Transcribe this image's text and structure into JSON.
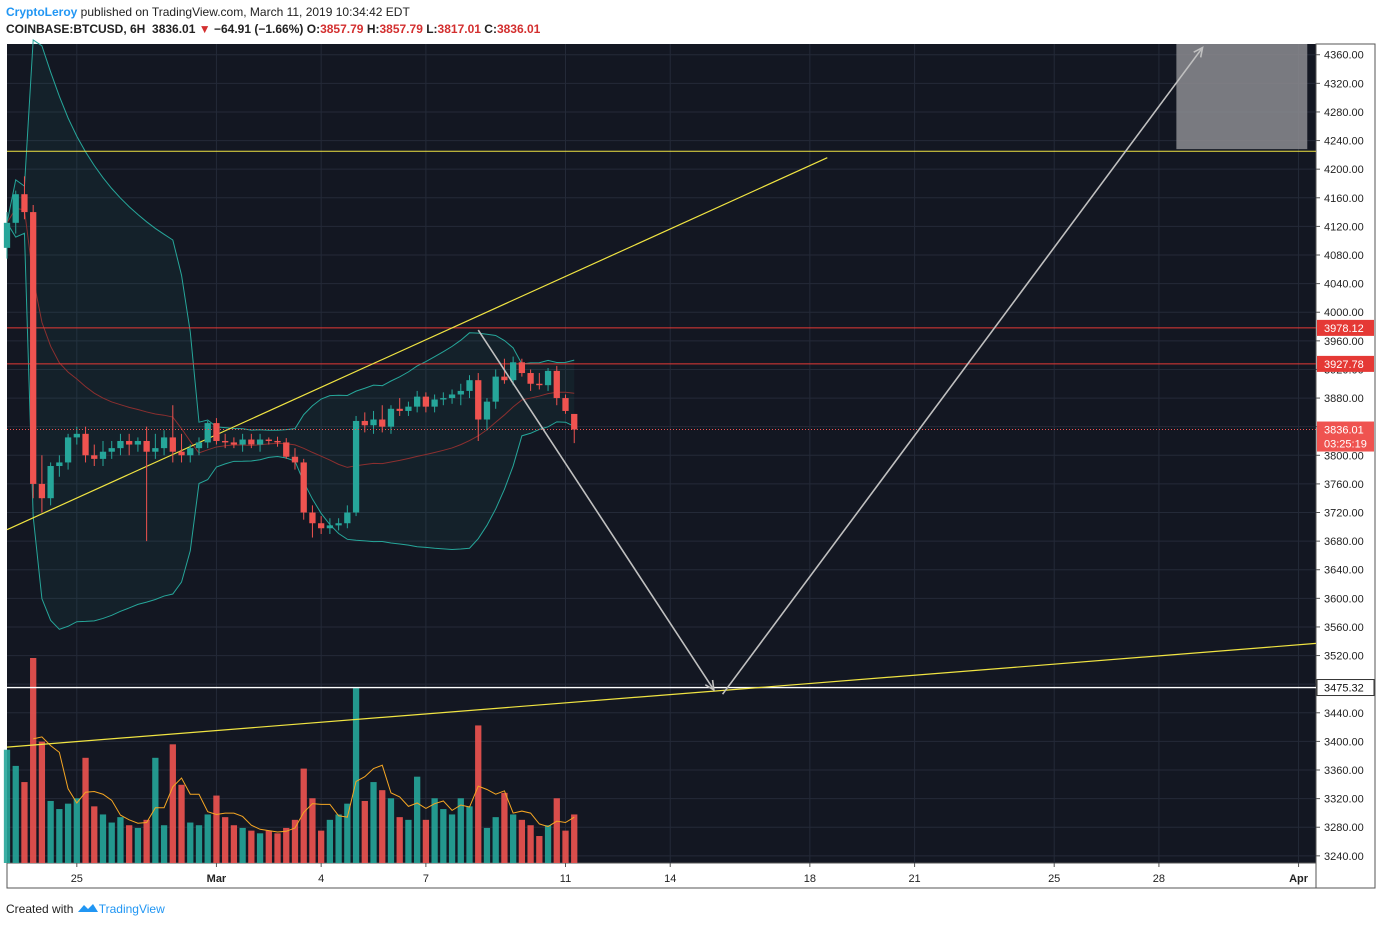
{
  "header": {
    "author": "CryptoLeroy",
    "published_text": " published on TradingView.com, March 11, 2019 10:34:42 EDT",
    "symbol": "COINBASE:BTCUSD, 6H",
    "last": "3836.01",
    "change": "−64.91 (−1.66%)",
    "open_label": "O:",
    "open": "3857.79",
    "high_label": "H:",
    "high": "3857.79",
    "low_label": "L:",
    "low": "3817.01",
    "close_label": "C:",
    "close": "3836.01"
  },
  "footer": {
    "created_with": "Created with",
    "brand": "TradingView"
  },
  "colors": {
    "background": "#131722",
    "up": "#26a69a",
    "down": "#ef5350",
    "trendline": "#f0e442",
    "support": "#ffffff",
    "resistance": "#e53935",
    "arrow": "#c0c0c0",
    "bollinger": "#26a69a",
    "volume_ma": "#f5a623"
  },
  "chart_data": {
    "type": "candlestick",
    "timeframe": "6H",
    "ylim": [
      3230,
      4375
    ],
    "y_ticks": [
      3240,
      3280,
      3320,
      3360,
      3400,
      3440,
      3480,
      3520,
      3560,
      3600,
      3640,
      3680,
      3720,
      3760,
      3800,
      3840,
      3880,
      3920,
      3960,
      4000,
      4040,
      4080,
      4120,
      4160,
      4200,
      4240,
      4280,
      4320,
      4360
    ],
    "y_tick_labels": [
      "3240.00",
      "3280.00",
      "3320.00",
      "3360.00",
      "3400.00",
      "3440.00",
      "3480.00",
      "3520.00",
      "3560.00",
      "3600.00",
      "3640.00",
      "3680.00",
      "3720.00",
      "3760.00",
      "3800.00",
      "3840.00",
      "3880.00",
      "3920.00",
      "3960.00",
      "4000.00",
      "4040.00",
      "4080.00",
      "4120.00",
      "4160.00",
      "4200.00",
      "4240.00",
      "4280.00",
      "4320.00",
      "4360.00"
    ],
    "x_axis": {
      "start": "2019-02-23T00:00",
      "end": "2019-04-01T12:00",
      "ticks": [
        {
          "date": "2019-02-25",
          "label": "25"
        },
        {
          "date": "2019-03-01",
          "label": "Mar"
        },
        {
          "date": "2019-03-04",
          "label": "4"
        },
        {
          "date": "2019-03-07",
          "label": "7"
        },
        {
          "date": "2019-03-11",
          "label": "11"
        },
        {
          "date": "2019-03-14",
          "label": "14"
        },
        {
          "date": "2019-03-18",
          "label": "18"
        },
        {
          "date": "2019-03-21",
          "label": "21"
        },
        {
          "date": "2019-03-25",
          "label": "25"
        },
        {
          "date": "2019-03-28",
          "label": "28"
        },
        {
          "date": "2019-04-01",
          "label": "Apr"
        }
      ]
    },
    "candles": [
      [
        "2019-02-23T00:00",
        4090,
        4140,
        4075,
        4125,
        4.2
      ],
      [
        "2019-02-23T06:00",
        4125,
        4170,
        4110,
        4165,
        3.6
      ],
      [
        "2019-02-23T12:00",
        4165,
        4190,
        4130,
        4140,
        3.0
      ],
      [
        "2019-02-23T18:00",
        4140,
        4150,
        3740,
        3760,
        7.6
      ],
      [
        "2019-02-24T00:00",
        3760,
        3800,
        3720,
        3740,
        4.5
      ],
      [
        "2019-02-24T06:00",
        3740,
        3790,
        3730,
        3785,
        2.3
      ],
      [
        "2019-02-24T12:00",
        3785,
        3800,
        3770,
        3790,
        2.0
      ],
      [
        "2019-02-24T18:00",
        3790,
        3830,
        3780,
        3825,
        2.2
      ],
      [
        "2019-02-25T00:00",
        3825,
        3840,
        3815,
        3830,
        2.4
      ],
      [
        "2019-02-25T06:00",
        3830,
        3840,
        3790,
        3800,
        3.9
      ],
      [
        "2019-02-25T12:00",
        3800,
        3815,
        3785,
        3795,
        2.1
      ],
      [
        "2019-02-25T18:00",
        3795,
        3820,
        3785,
        3805,
        1.8
      ],
      [
        "2019-02-26T00:00",
        3805,
        3820,
        3795,
        3810,
        1.5
      ],
      [
        "2019-02-26T06:00",
        3810,
        3830,
        3800,
        3820,
        1.7
      ],
      [
        "2019-02-26T12:00",
        3820,
        3830,
        3800,
        3815,
        1.4
      ],
      [
        "2019-02-26T18:00",
        3815,
        3825,
        3805,
        3820,
        1.3
      ],
      [
        "2019-02-27T00:00",
        3820,
        3840,
        3680,
        3805,
        1.6
      ],
      [
        "2019-02-27T06:00",
        3805,
        3830,
        3795,
        3810,
        3.9
      ],
      [
        "2019-02-27T12:00",
        3810,
        3835,
        3800,
        3825,
        1.4
      ],
      [
        "2019-02-27T18:00",
        3825,
        3870,
        3790,
        3805,
        4.4
      ],
      [
        "2019-02-28T00:00",
        3805,
        3830,
        3790,
        3800,
        2.9
      ],
      [
        "2019-02-28T06:00",
        3800,
        3815,
        3790,
        3810,
        1.5
      ],
      [
        "2019-02-28T12:00",
        3810,
        3825,
        3800,
        3818,
        1.4
      ],
      [
        "2019-02-28T18:00",
        3818,
        3848,
        3810,
        3845,
        1.8
      ],
      [
        "2019-03-01T00:00",
        3845,
        3852,
        3815,
        3820,
        2.5
      ],
      [
        "2019-03-01T06:00",
        3820,
        3830,
        3810,
        3818,
        1.7
      ],
      [
        "2019-03-01T12:00",
        3818,
        3825,
        3810,
        3815,
        1.4
      ],
      [
        "2019-03-01T18:00",
        3815,
        3830,
        3805,
        3822,
        1.3
      ],
      [
        "2019-03-02T00:00",
        3822,
        3830,
        3810,
        3815,
        1.2
      ],
      [
        "2019-03-02T06:00",
        3815,
        3830,
        3805,
        3822,
        1.1
      ],
      [
        "2019-03-02T12:00",
        3822,
        3825,
        3815,
        3820,
        1.2
      ],
      [
        "2019-03-02T18:00",
        3820,
        3826,
        3812,
        3818,
        1.1
      ],
      [
        "2019-03-03T00:00",
        3818,
        3824,
        3795,
        3798,
        1.3
      ],
      [
        "2019-03-03T06:00",
        3798,
        3810,
        3780,
        3790,
        1.6
      ],
      [
        "2019-03-03T12:00",
        3790,
        3795,
        3710,
        3720,
        3.5
      ],
      [
        "2019-03-03T18:00",
        3720,
        3730,
        3685,
        3705,
        2.4
      ],
      [
        "2019-03-04T00:00",
        3705,
        3715,
        3690,
        3698,
        1.2
      ],
      [
        "2019-03-04T06:00",
        3698,
        3712,
        3690,
        3702,
        1.6
      ],
      [
        "2019-03-04T12:00",
        3702,
        3712,
        3695,
        3705,
        1.8
      ],
      [
        "2019-03-04T18:00",
        3705,
        3730,
        3698,
        3720,
        2.2
      ],
      [
        "2019-03-05T00:00",
        3720,
        3855,
        3715,
        3848,
        6.5
      ],
      [
        "2019-03-05T06:00",
        3848,
        3860,
        3832,
        3842,
        2.3
      ],
      [
        "2019-03-05T12:00",
        3842,
        3862,
        3830,
        3850,
        3.0
      ],
      [
        "2019-03-05T18:00",
        3850,
        3870,
        3832,
        3840,
        2.7
      ],
      [
        "2019-03-06T00:00",
        3840,
        3870,
        3830,
        3865,
        2.4
      ],
      [
        "2019-03-06T06:00",
        3865,
        3880,
        3855,
        3862,
        1.7
      ],
      [
        "2019-03-06T12:00",
        3862,
        3875,
        3855,
        3868,
        1.6
      ],
      [
        "2019-03-06T18:00",
        3868,
        3890,
        3860,
        3882,
        3.2
      ],
      [
        "2019-03-07T00:00",
        3882,
        3888,
        3860,
        3868,
        1.6
      ],
      [
        "2019-03-07T06:00",
        3868,
        3885,
        3860,
        3878,
        2.4
      ],
      [
        "2019-03-07T12:00",
        3878,
        3888,
        3870,
        3880,
        2.0
      ],
      [
        "2019-03-07T18:00",
        3880,
        3892,
        3872,
        3885,
        1.8
      ],
      [
        "2019-03-08T00:00",
        3885,
        3900,
        3870,
        3890,
        2.4
      ],
      [
        "2019-03-08T06:00",
        3890,
        3912,
        3880,
        3905,
        2.1
      ],
      [
        "2019-03-08T12:00",
        3905,
        3915,
        3820,
        3850,
        5.1
      ],
      [
        "2019-03-08T18:00",
        3850,
        3880,
        3835,
        3875,
        1.3
      ],
      [
        "2019-03-09T00:00",
        3875,
        3920,
        3865,
        3910,
        1.7
      ],
      [
        "2019-03-09T06:00",
        3910,
        3935,
        3900,
        3905,
        2.6
      ],
      [
        "2019-03-09T12:00",
        3905,
        3938,
        3898,
        3930,
        1.8
      ],
      [
        "2019-03-09T18:00",
        3930,
        3935,
        3910,
        3915,
        1.6
      ],
      [
        "2019-03-10T00:00",
        3915,
        3920,
        3890,
        3900,
        1.4
      ],
      [
        "2019-03-10T06:00",
        3900,
        3915,
        3892,
        3898,
        1.0
      ],
      [
        "2019-03-10T12:00",
        3898,
        3922,
        3890,
        3918,
        1.4
      ],
      [
        "2019-03-10T18:00",
        3918,
        3925,
        3870,
        3880,
        2.4
      ],
      [
        "2019-03-11T00:00",
        3880,
        3885,
        3858,
        3862,
        1.2
      ],
      [
        "2019-03-11T06:00",
        3857.79,
        3857.79,
        3817.01,
        3836.01,
        1.8
      ]
    ],
    "horizontal_lines": [
      {
        "price": 4225,
        "color": "yellow"
      },
      {
        "price": 3978.12,
        "label": "3978.12",
        "color": "red"
      },
      {
        "price": 3927.78,
        "label": "3927.78",
        "color": "red"
      },
      {
        "price": 3475.32,
        "label": "3475.32",
        "color": "white"
      }
    ],
    "last_price": {
      "price": 3836.01,
      "label": "3836.01",
      "countdown": "03:25:19"
    },
    "trendlines": [
      {
        "from": [
          "2019-02-23T00:00",
          3696
        ],
        "to": [
          "2019-03-18T12:00",
          4216
        ]
      },
      {
        "from": [
          "2019-02-23T00:00",
          3392
        ],
        "to": [
          "2019-04-01T12:00",
          3537
        ]
      }
    ],
    "arrows": [
      {
        "from": [
          "2019-03-08T12:00",
          3975
        ],
        "to": [
          "2019-03-15T06:00",
          3472
        ]
      },
      {
        "from": [
          "2019-03-15T12:00",
          3466
        ],
        "to": [
          "2019-03-29T06:00",
          4370
        ]
      }
    ],
    "target_box": {
      "from": "2019-03-28T12:00",
      "to": "2019-04-01T06:00",
      "low": 4228,
      "high": 4375
    }
  }
}
